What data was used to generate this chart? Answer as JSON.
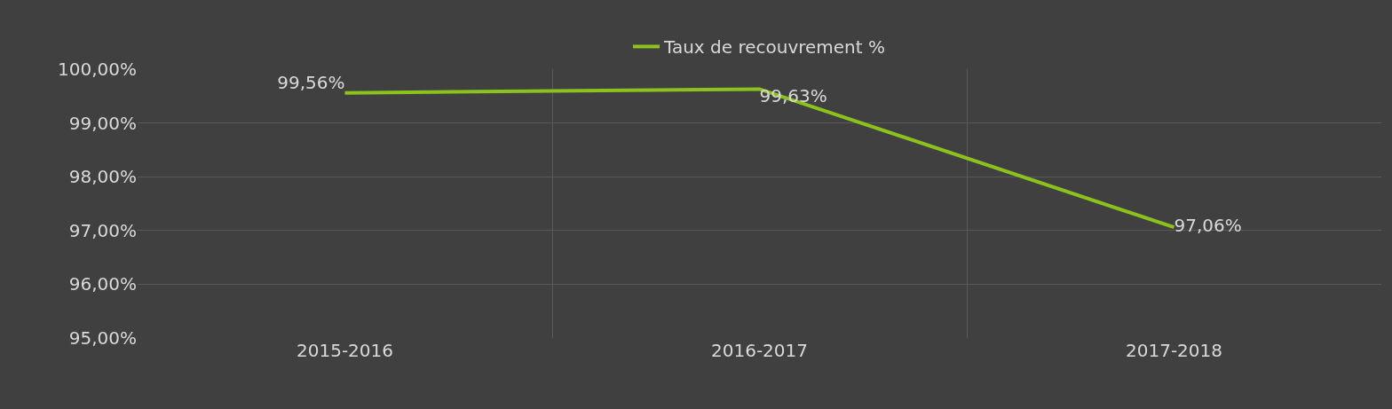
{
  "chart_data": {
    "type": "line",
    "categories": [
      "2015-2016",
      "2016-2017",
      "2017-2018"
    ],
    "series": [
      {
        "name": "Taux de recouvrement %",
        "color": "#8cc21c",
        "values": [
          99.56,
          99.63,
          97.06
        ],
        "value_labels": [
          "99,56%",
          "99,63%",
          "97,06%"
        ]
      }
    ],
    "ylim": [
      95,
      100
    ],
    "yticks": [
      {
        "value": 95,
        "label": "95,00%"
      },
      {
        "value": 96,
        "label": "96,00%"
      },
      {
        "value": 97,
        "label": "97,00%"
      },
      {
        "value": 98,
        "label": "98,00%"
      },
      {
        "value": 99,
        "label": "99,00%"
      },
      {
        "value": 100,
        "label": "100,00%"
      }
    ],
    "grid": true,
    "legend": "top",
    "marker": "none",
    "line_style": "solid"
  }
}
